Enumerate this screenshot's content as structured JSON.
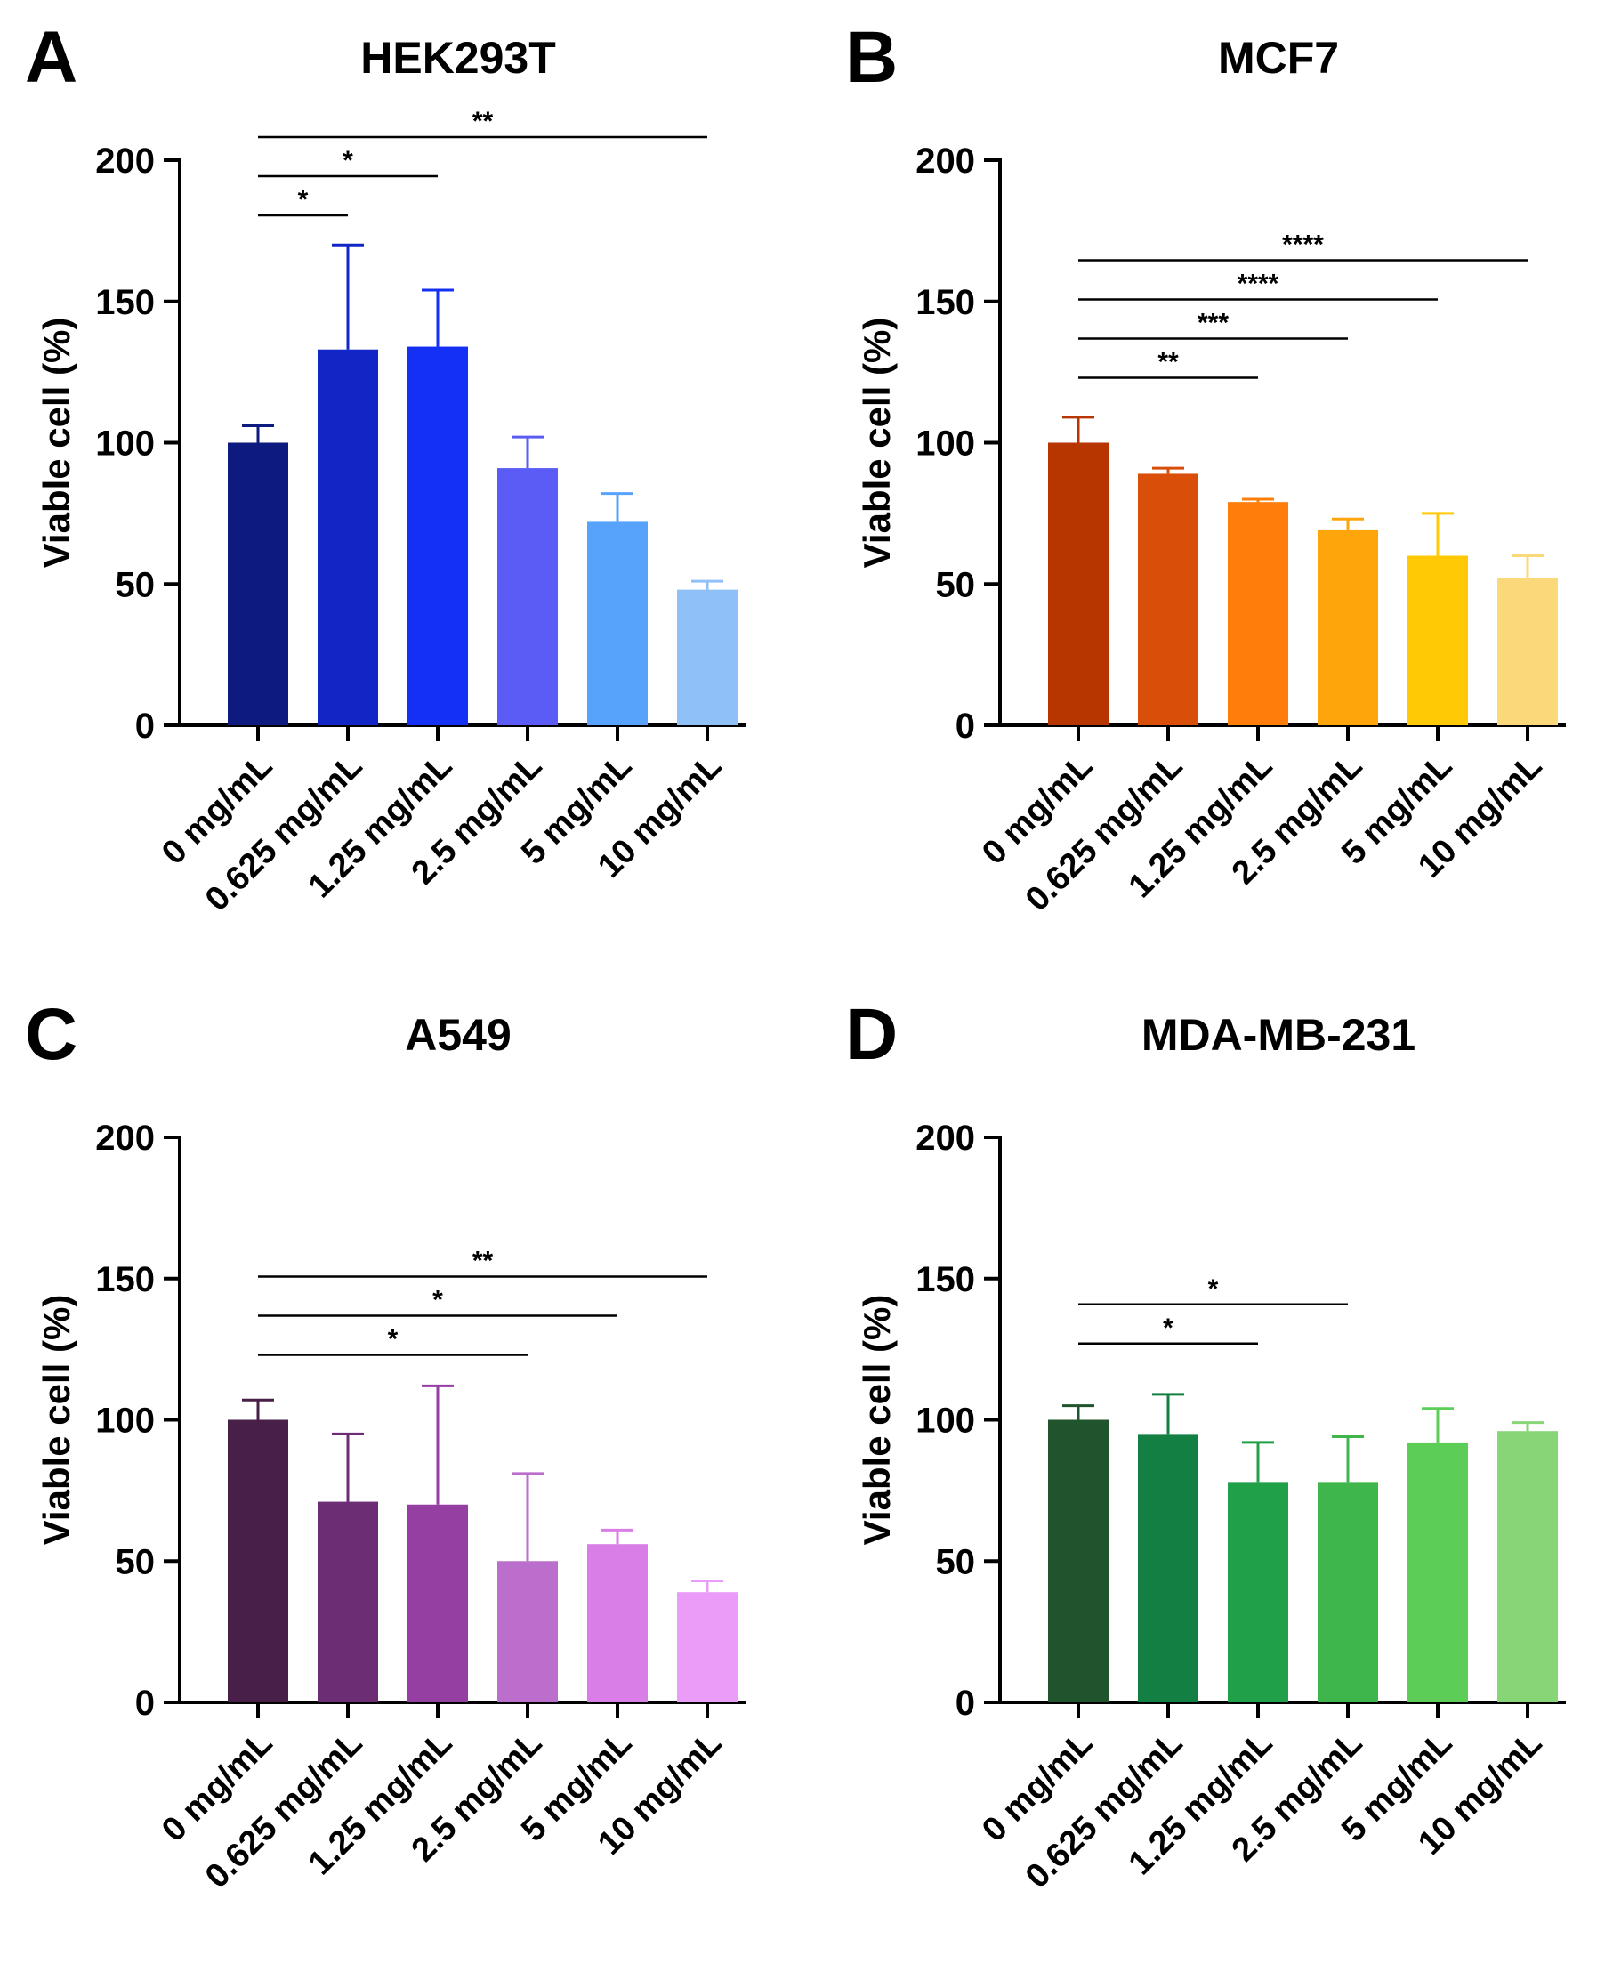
{
  "figure": {
    "panels": [
      "A",
      "B",
      "C",
      "D"
    ]
  },
  "chart_data": [
    {
      "panel": "A",
      "type": "bar",
      "title": "HEK293T",
      "xlabel": "",
      "ylabel": "Viable cell (%)",
      "ylim": [
        0,
        200
      ],
      "yticks": [
        0,
        50,
        100,
        150,
        200
      ],
      "categories": [
        "0 mg/mL",
        "0.625 mg/mL",
        "1.25 mg/mL",
        "2.5 mg/mL",
        "5 mg/mL",
        "10 mg/mL"
      ],
      "values": [
        100,
        133,
        134,
        91,
        72,
        48
      ],
      "errors": [
        6,
        37,
        20,
        11,
        10,
        3
      ],
      "colors": [
        "#0d1a80",
        "#1126c4",
        "#1530f5",
        "#5a5cf5",
        "#57a3fb",
        "#90c0f8"
      ],
      "significance": [
        {
          "from": 0,
          "to": 1,
          "label": "*"
        },
        {
          "from": 0,
          "to": 2,
          "label": "*"
        },
        {
          "from": 0,
          "to": 5,
          "label": "**"
        }
      ]
    },
    {
      "panel": "B",
      "type": "bar",
      "title": "MCF7",
      "xlabel": "",
      "ylabel": "Viable cell (%)",
      "ylim": [
        0,
        200
      ],
      "yticks": [
        0,
        50,
        100,
        150,
        200
      ],
      "categories": [
        "0 mg/mL",
        "0.625 mg/mL",
        "1.25 mg/mL",
        "2.5 mg/mL",
        "5 mg/mL",
        "10 mg/mL"
      ],
      "values": [
        100,
        89,
        79,
        69,
        60,
        52
      ],
      "errors": [
        9,
        2,
        1,
        4,
        15,
        8
      ],
      "colors": [
        "#b73600",
        "#d94e08",
        "#ff7d0a",
        "#ffa50c",
        "#ffc905",
        "#fbd97a"
      ],
      "significance": [
        {
          "from": 0,
          "to": 2,
          "label": "**"
        },
        {
          "from": 0,
          "to": 3,
          "label": "***"
        },
        {
          "from": 0,
          "to": 4,
          "label": "****"
        },
        {
          "from": 0,
          "to": 5,
          "label": "****"
        }
      ]
    },
    {
      "panel": "C",
      "type": "bar",
      "title": "A549",
      "xlabel": "",
      "ylabel": "Viable cell (%)",
      "ylim": [
        0,
        200
      ],
      "yticks": [
        0,
        50,
        100,
        150,
        200
      ],
      "categories": [
        "0 mg/mL",
        "0.625 mg/mL",
        "1.25 mg/mL",
        "2.5 mg/mL",
        "5 mg/mL",
        "10 mg/mL"
      ],
      "values": [
        100,
        71,
        70,
        50,
        56,
        39
      ],
      "errors": [
        7,
        24,
        42,
        31,
        5,
        4
      ],
      "colors": [
        "#471f47",
        "#6d2d74",
        "#953fa3",
        "#bc6ecc",
        "#d97ee6",
        "#eb9cf8"
      ],
      "significance": [
        {
          "from": 0,
          "to": 3,
          "label": "*"
        },
        {
          "from": 0,
          "to": 4,
          "label": "*"
        },
        {
          "from": 0,
          "to": 5,
          "label": "**"
        }
      ]
    },
    {
      "panel": "D",
      "type": "bar",
      "title": "MDA-MB-231",
      "xlabel": "",
      "ylabel": "Viable cell (%)",
      "ylim": [
        0,
        200
      ],
      "yticks": [
        0,
        50,
        100,
        150,
        200
      ],
      "categories": [
        "0 mg/mL",
        "0.625 mg/mL",
        "1.25 mg/mL",
        "2.5 mg/mL",
        "5 mg/mL",
        "10 mg/mL"
      ],
      "values": [
        100,
        95,
        78,
        78,
        92,
        96
      ],
      "errors": [
        5,
        14,
        14,
        16,
        12,
        3
      ],
      "colors": [
        "#20542c",
        "#147f42",
        "#21a04a",
        "#3fb64c",
        "#5ccd57",
        "#87d577"
      ],
      "significance": [
        {
          "from": 0,
          "to": 2,
          "label": "*"
        },
        {
          "from": 0,
          "to": 3,
          "label": "*"
        }
      ]
    }
  ]
}
